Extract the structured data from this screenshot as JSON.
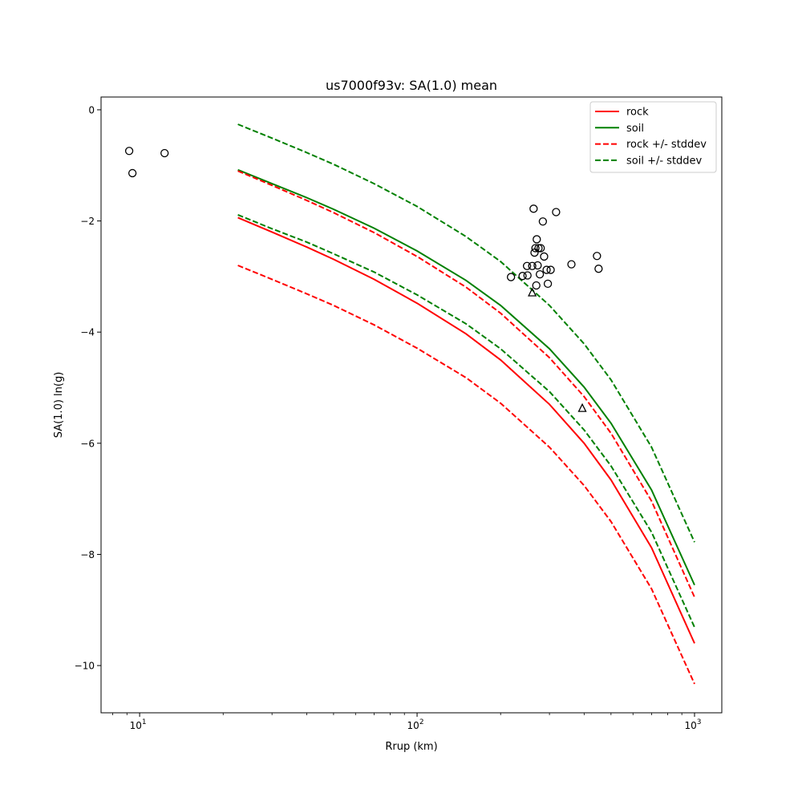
{
  "chart_data": {
    "type": "line",
    "title": "us7000f93v: SA(1.0) mean",
    "xlabel": "Rrup (km)",
    "ylabel": "SA(1.0) ln(g)",
    "xscale": "log",
    "xlim": [
      7.26,
      1254
    ],
    "ylim": [
      -10.85,
      0.23
    ],
    "xticks": [
      {
        "value": 10,
        "base": "10",
        "exp": "1"
      },
      {
        "value": 100,
        "base": "10",
        "exp": "2"
      },
      {
        "value": 1000,
        "base": "10",
        "exp": "3"
      }
    ],
    "yticks": [
      {
        "value": 0,
        "label": "0"
      },
      {
        "value": -2,
        "label": "−2"
      },
      {
        "value": -4,
        "label": "−4"
      },
      {
        "value": -6,
        "label": "−6"
      },
      {
        "value": -8,
        "label": "−8"
      },
      {
        "value": -10,
        "label": "−10"
      }
    ],
    "grid": false,
    "legend_position": "top-right",
    "x": [
      22.6,
      30,
      40,
      50,
      70,
      100,
      150,
      200,
      300,
      400,
      500,
      700,
      1000
    ],
    "series": [
      {
        "name": "rock",
        "color": "#ff0000",
        "dash": false,
        "values": [
          -1.94,
          -2.2,
          -2.47,
          -2.69,
          -3.05,
          -3.48,
          -4.03,
          -4.5,
          -5.3,
          -6.0,
          -6.66,
          -7.88,
          -9.6
        ]
      },
      {
        "name": "soil",
        "color": "#008000",
        "dash": false,
        "values": [
          -1.08,
          -1.33,
          -1.58,
          -1.79,
          -2.13,
          -2.54,
          -3.07,
          -3.52,
          -4.3,
          -4.99,
          -5.64,
          -6.84,
          -8.55
        ]
      },
      {
        "name": "rock +/- stddev",
        "color": "#ff0000",
        "dash": true,
        "values": [
          -1.1,
          -1.36,
          -1.63,
          -1.85,
          -2.21,
          -2.64,
          -3.19,
          -3.66,
          -4.46,
          -5.16,
          -5.82,
          -7.04,
          -8.77
        ]
      },
      {
        "name": "rock +/- stddev (lower)",
        "legend": false,
        "color": "#ff0000",
        "dash": true,
        "values": [
          -2.8,
          -3.05,
          -3.31,
          -3.52,
          -3.87,
          -4.29,
          -4.82,
          -5.28,
          -6.07,
          -6.76,
          -7.41,
          -8.62,
          -10.33
        ]
      },
      {
        "name": "soil +/- stddev",
        "color": "#008000",
        "dash": true,
        "values": [
          -0.26,
          -0.51,
          -0.77,
          -0.98,
          -1.33,
          -1.74,
          -2.28,
          -2.73,
          -3.52,
          -4.21,
          -4.86,
          -6.07,
          -7.78
        ]
      },
      {
        "name": "soil +/- stddev (lower)",
        "legend": false,
        "color": "#008000",
        "dash": true,
        "values": [
          -1.89,
          -2.14,
          -2.38,
          -2.59,
          -2.92,
          -3.33,
          -3.85,
          -4.3,
          -5.07,
          -5.76,
          -6.41,
          -7.6,
          -9.31
        ]
      }
    ],
    "legend": [
      "rock",
      "soil",
      "rock +/- stddev",
      "soil +/- stddev"
    ],
    "observations_circle": [
      [
        9.17,
        -0.74
      ],
      [
        9.42,
        -1.14
      ],
      [
        12.3,
        -0.78
      ],
      [
        263,
        -1.78
      ],
      [
        317,
        -1.84
      ],
      [
        284,
        -2.01
      ],
      [
        270,
        -2.33
      ],
      [
        267,
        -2.49
      ],
      [
        274,
        -2.49
      ],
      [
        279,
        -2.49
      ],
      [
        265,
        -2.57
      ],
      [
        287,
        -2.64
      ],
      [
        445,
        -2.63
      ],
      [
        360,
        -2.78
      ],
      [
        451,
        -2.86
      ],
      [
        249,
        -2.81
      ],
      [
        260,
        -2.81
      ],
      [
        272,
        -2.8
      ],
      [
        293,
        -2.88
      ],
      [
        303,
        -2.88
      ],
      [
        277,
        -2.96
      ],
      [
        218,
        -3.01
      ],
      [
        240,
        -2.99
      ],
      [
        250,
        -2.98
      ],
      [
        269,
        -3.16
      ],
      [
        296,
        -3.13
      ]
    ],
    "observations_triangle": [
      [
        260,
        -3.29
      ],
      [
        394,
        -5.37
      ]
    ]
  }
}
